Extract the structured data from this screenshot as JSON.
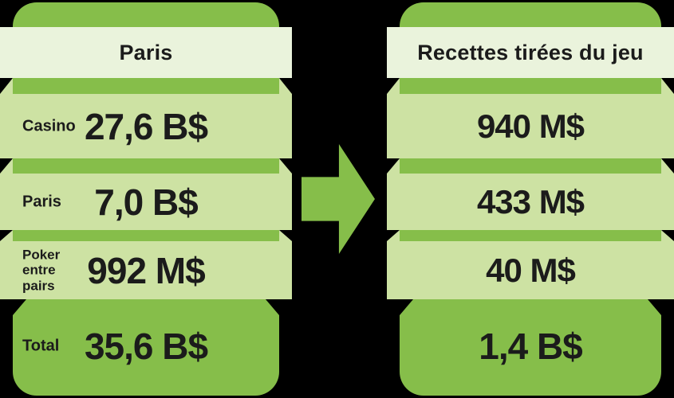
{
  "background": "#000000",
  "colors": {
    "accent": "#86BE4A",
    "band": "#CDE2A3",
    "header-band": "#EAF3DC",
    "text": "#1B1B1B"
  },
  "left_panel": {
    "header": "Paris",
    "rows": [
      {
        "label": "Casino",
        "value": "27,6 B$"
      },
      {
        "label": "Paris",
        "value": "7,0 B$"
      },
      {
        "label": "Poker entre pairs",
        "value": "992 M$"
      }
    ],
    "total": {
      "label": "Total",
      "value": "35,6 B$"
    }
  },
  "right_panel": {
    "header": "Recettes tirées du jeu",
    "rows": [
      {
        "value": "940 M$"
      },
      {
        "value": "433 M$"
      },
      {
        "value": "40 M$"
      }
    ],
    "total": {
      "value": "1,4 B$"
    }
  },
  "chart_data": {
    "type": "table",
    "categories": [
      "Casino",
      "Paris",
      "Poker entre pairs",
      "Total"
    ],
    "series": [
      {
        "name": "Paris",
        "values_display": [
          "27,6 B$",
          "7,0 B$",
          "992 M$",
          "35,6 B$"
        ],
        "values_usd": [
          27600000000,
          7000000000,
          992000000,
          35600000000
        ]
      },
      {
        "name": "Recettes tirées du jeu",
        "values_display": [
          "940 M$",
          "433 M$",
          "40 M$",
          "1,4 B$"
        ],
        "values_usd": [
          940000000,
          433000000,
          40000000,
          1400000000
        ]
      }
    ],
    "layout": "two funnel columns linked by right arrow, dark background"
  }
}
